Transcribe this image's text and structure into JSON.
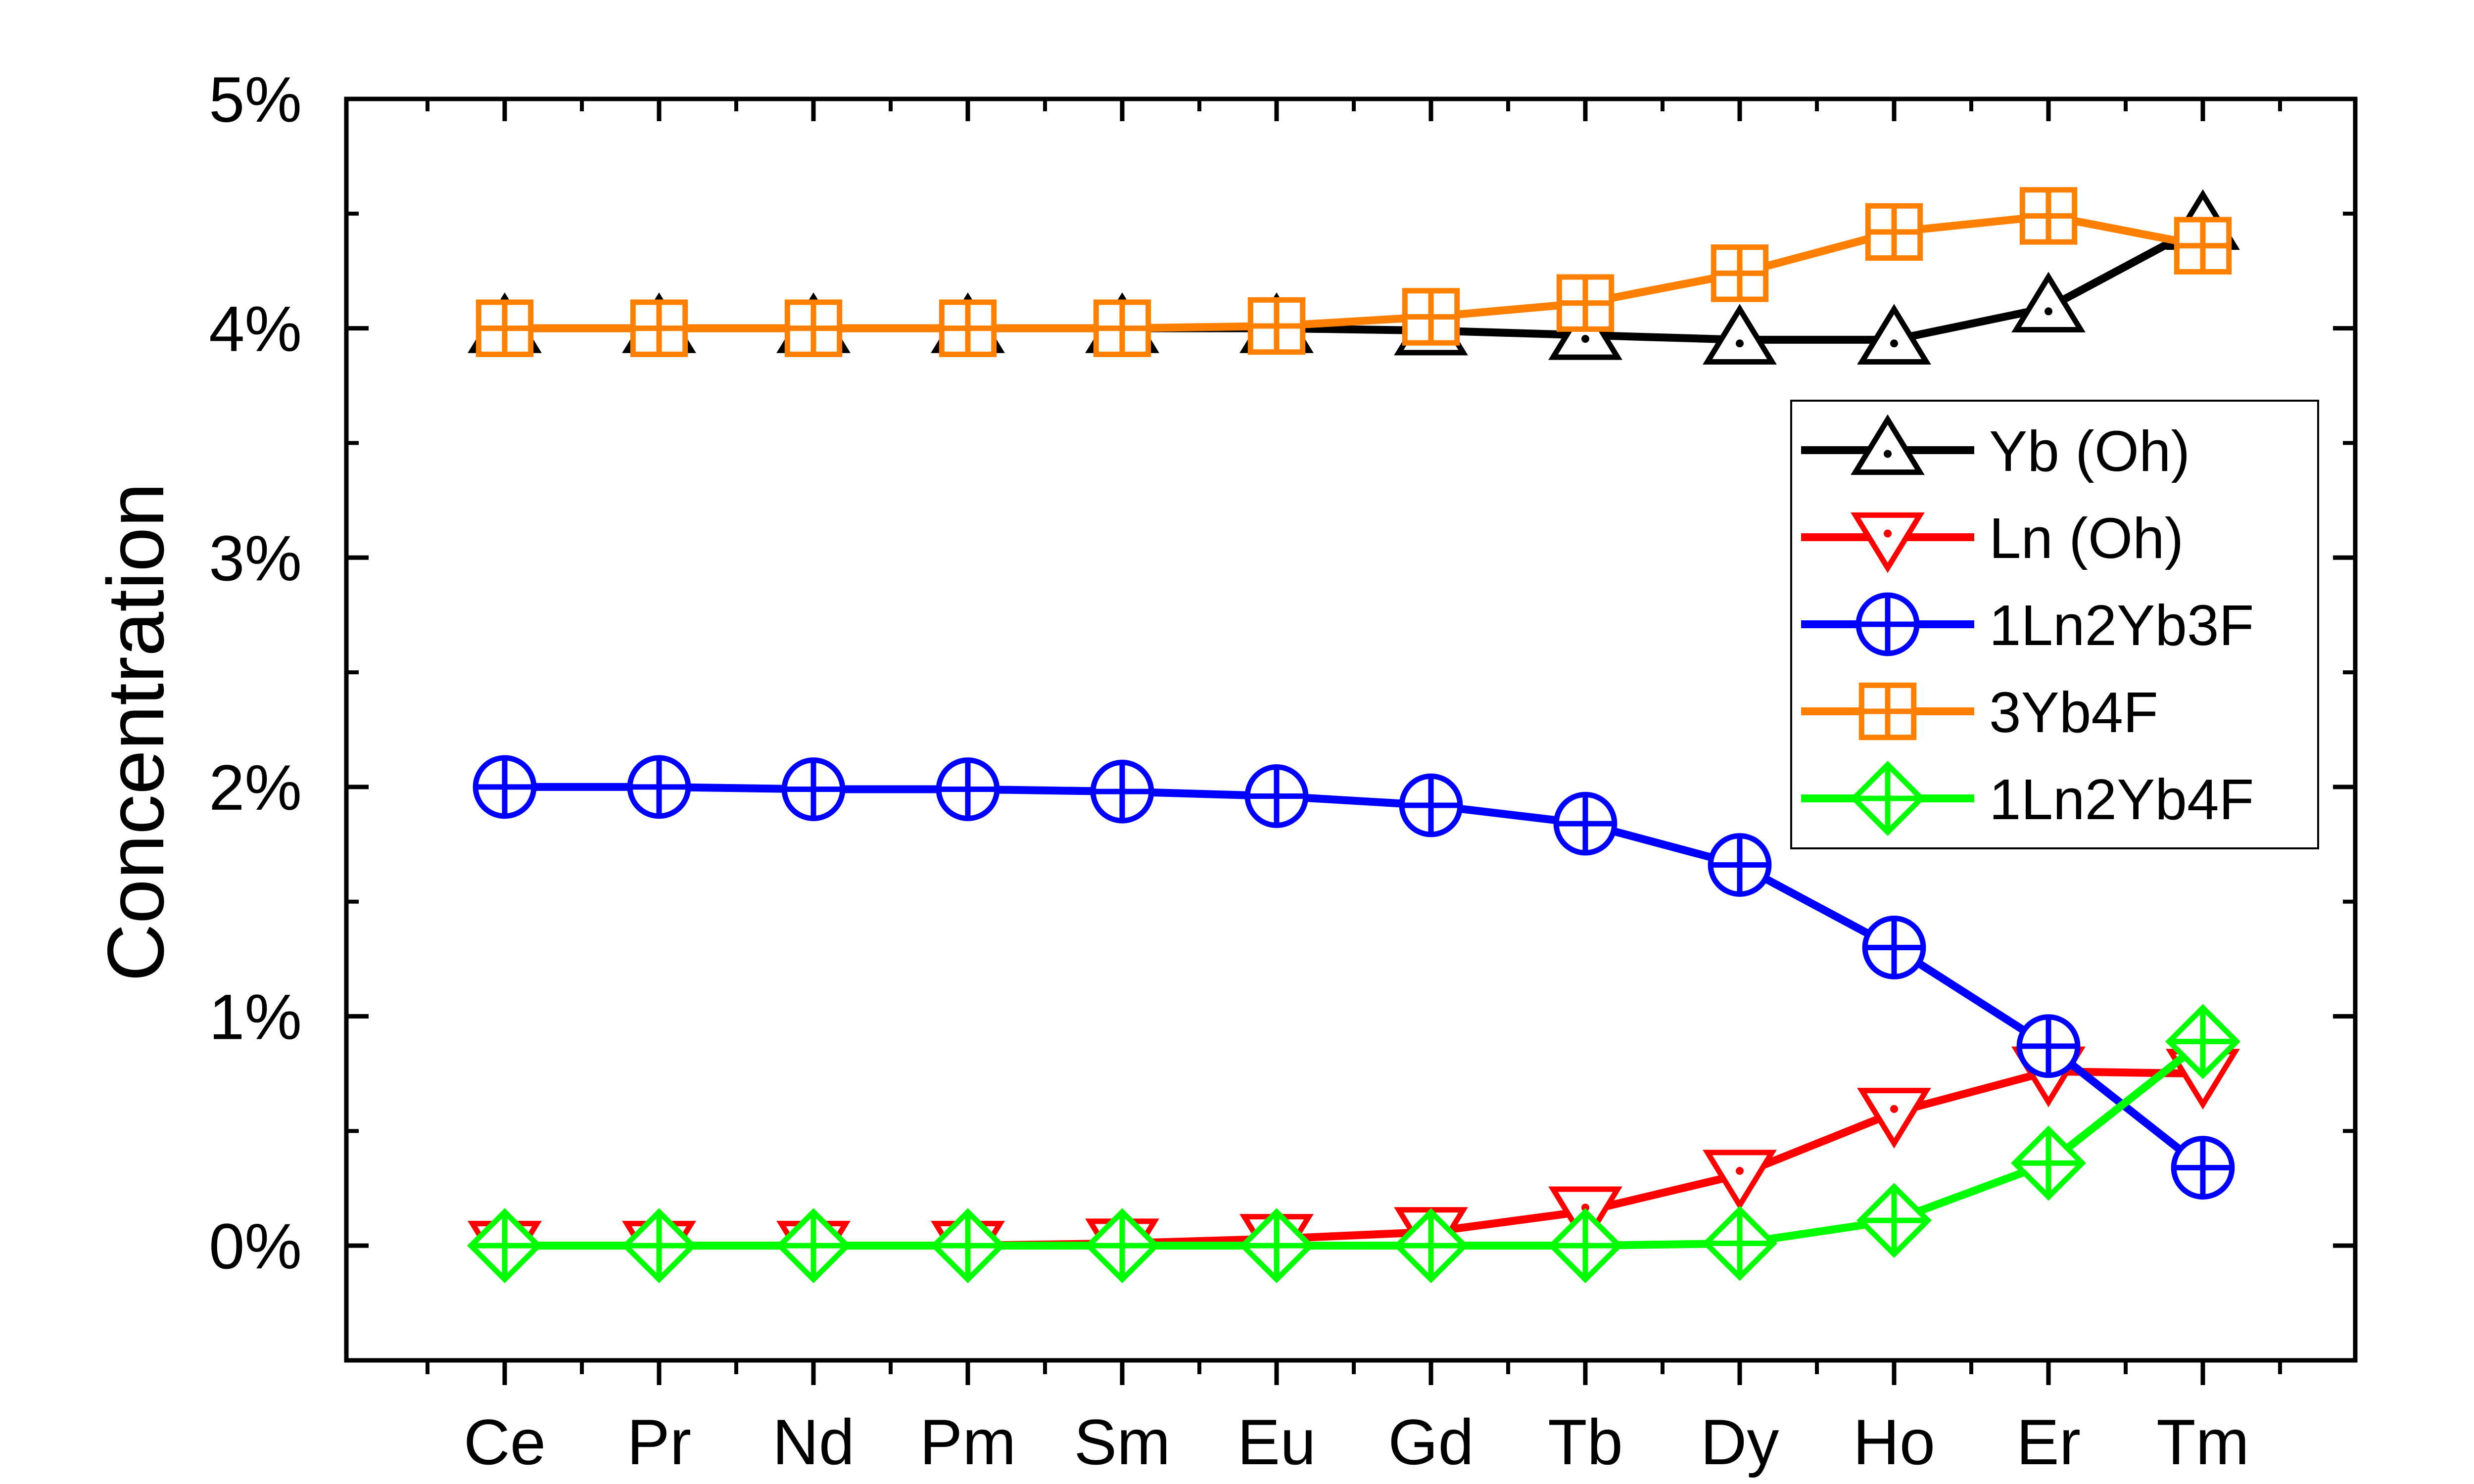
{
  "chart_data": {
    "type": "line",
    "title": "",
    "xlabel": "",
    "ylabel": "Concentration",
    "categories": [
      "Ce",
      "Pr",
      "Nd",
      "Pm",
      "Sm",
      "Eu",
      "Gd",
      "Tb",
      "Dy",
      "Ho",
      "Er",
      "Tm"
    ],
    "yticks": [
      0,
      1,
      2,
      3,
      4,
      5
    ],
    "ytick_labels": [
      "0%",
      "1%",
      "2%",
      "3%",
      "4%",
      "5%"
    ],
    "ylim": [
      -0.5,
      5
    ],
    "grid": false,
    "legend_position": "right",
    "series": [
      {
        "name": "Yb (Oh)",
        "color": "#000000",
        "marker": "triangle-up",
        "values": [
          4.0,
          4.0,
          4.0,
          4.0,
          4.0,
          4.0,
          3.99,
          3.97,
          3.95,
          3.95,
          4.09,
          4.45
        ]
      },
      {
        "name": "Ln (Oh)",
        "color": "#ff0000",
        "marker": "triangle-down",
        "values": [
          0.0,
          0.0,
          0.0,
          0.0,
          0.01,
          0.03,
          0.06,
          0.15,
          0.31,
          0.58,
          0.76,
          0.75
        ]
      },
      {
        "name": "1Ln2Yb3F",
        "color": "#0000ff",
        "marker": "circle-plus",
        "values": [
          2.0,
          2.0,
          1.99,
          1.99,
          1.98,
          1.96,
          1.92,
          1.84,
          1.66,
          1.3,
          0.87,
          0.34
        ]
      },
      {
        "name": "3Yb4F",
        "color": "#ff8000",
        "marker": "square-plus",
        "values": [
          4.0,
          4.0,
          4.0,
          4.0,
          4.0,
          4.01,
          4.05,
          4.11,
          4.24,
          4.42,
          4.49,
          4.36
        ]
      },
      {
        "name": "1Ln2Yb4F",
        "color": "#00ff00",
        "marker": "diamond-plus",
        "values": [
          0.0,
          0.0,
          0.0,
          0.0,
          0.0,
          0.0,
          0.0,
          0.0,
          0.01,
          0.11,
          0.36,
          0.89
        ]
      }
    ]
  }
}
